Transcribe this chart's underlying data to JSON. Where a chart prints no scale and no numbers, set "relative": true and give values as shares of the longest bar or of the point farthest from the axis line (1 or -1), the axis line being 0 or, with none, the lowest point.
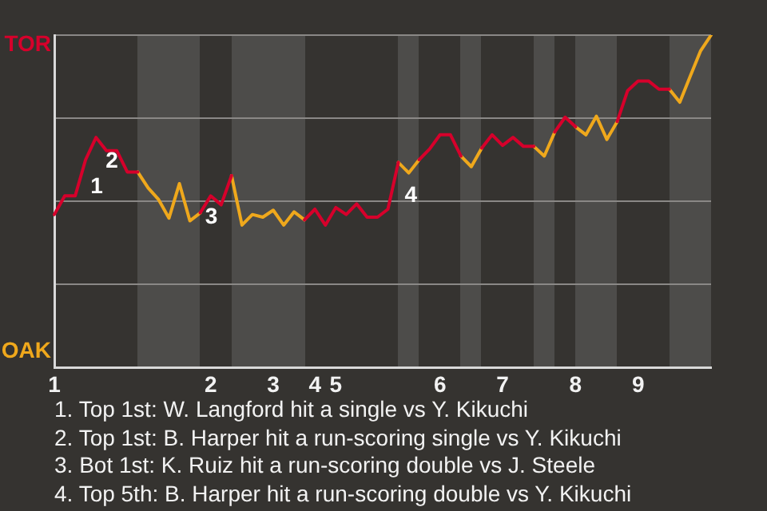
{
  "chart_data": {
    "type": "line",
    "relative": true,
    "categories": [
      "1",
      null,
      null,
      null,
      null,
      null,
      null,
      null,
      null,
      null,
      null,
      null,
      null,
      null,
      null,
      "2",
      null,
      null,
      null,
      null,
      null,
      "3",
      null,
      null,
      null,
      "4",
      null,
      "5",
      null,
      null,
      null,
      null,
      null,
      null,
      null,
      null,
      null,
      "6",
      null,
      null,
      null,
      null,
      null,
      "7",
      null,
      null,
      null,
      null,
      null,
      null,
      "8",
      null,
      null,
      null,
      null,
      null,
      "9",
      null,
      null,
      null,
      null,
      null,
      null,
      null
    ],
    "series": [
      {
        "color": "#d6002b",
        "values": [
          0.46,
          0.516,
          0.516,
          0.625,
          0.692,
          0.652,
          0.652,
          0.588,
          0.588,
          null,
          null,
          null,
          null,
          null,
          0.465,
          0.516,
          0.489,
          0.577,
          null,
          null,
          null,
          null,
          null,
          null,
          0.444,
          0.476,
          0.428,
          0.481,
          0.46,
          0.492,
          0.452,
          0.452,
          0.476,
          0.617,
          null,
          0.625,
          0.657,
          0.7,
          0.7,
          0.636,
          null,
          0.66,
          0.7,
          0.668,
          0.692,
          0.665,
          0.665,
          null,
          0.708,
          0.753,
          0.724,
          null,
          null,
          null,
          0.74,
          0.833,
          0.862,
          0.862,
          0.837,
          0.837,
          null,
          null,
          null,
          null
        ]
      },
      {
        "color": "#efa81c",
        "values": [
          null,
          null,
          null,
          null,
          null,
          null,
          null,
          null,
          0.588,
          0.54,
          0.505,
          0.449,
          0.553,
          0.441,
          0.465,
          null,
          null,
          0.577,
          0.428,
          0.46,
          0.452,
          0.473,
          0.428,
          0.468,
          0.444,
          null,
          null,
          null,
          null,
          null,
          null,
          null,
          null,
          0.617,
          0.585,
          0.625,
          null,
          null,
          null,
          0.636,
          0.604,
          0.66,
          null,
          null,
          null,
          null,
          0.665,
          0.636,
          0.708,
          null,
          0.724,
          0.7,
          0.756,
          0.686,
          0.74,
          null,
          null,
          null,
          null,
          0.837,
          0.798,
          0.876,
          0.953,
          1
        ]
      }
    ],
    "grid": "y",
    "marker": "none",
    "annotations": [
      "TOR",
      "OAK",
      "1",
      "2",
      "3",
      "4",
      "1. Top 1st: W. Langford hit a single vs Y. Kikuchi",
      "2. Top 1st: B. Harper hit a run-scoring single vs Y. Kikuchi",
      "3. Bot 1st: K. Ruiz hit a run-scoring double vs J. Steele",
      "4. Top 5th: B. Harper hit a run-scoring double vs Y. Kikuchi"
    ]
  }
}
